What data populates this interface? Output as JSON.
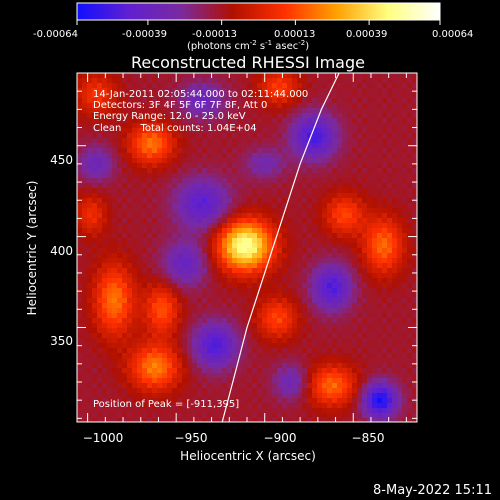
{
  "colorbar": {
    "tick_labels": [
      "-0.00064",
      "-0.00039",
      "-0.00013",
      "0.00013",
      "0.00039",
      "0.00064"
    ],
    "tick_values": [
      -0.00064,
      -0.00039,
      -0.00013,
      0.00013,
      0.00039,
      0.00064
    ],
    "range": [
      -0.00064,
      0.00064
    ],
    "units_prefix": "(photons cm",
    "units_exp1": "-2",
    "units_mid1": " s",
    "units_exp2": "-1",
    "units_mid2": " asec",
    "units_exp3": "-2",
    "units_suffix": ")",
    "colors": [
      "#1010ff",
      "#6020d0",
      "#7a2aa0",
      "#b01000",
      "#ff3000",
      "#ffa000",
      "#ffff80",
      "#ffffff"
    ]
  },
  "footer": {
    "timestamp": "8-May-2022 15:11"
  },
  "chart_data": {
    "type": "heatmap",
    "title": "Reconstructed RHESSI Image",
    "xlabel": "Heliocentric X (arcsec)",
    "ylabel": "Heliocentric Y (arcsec)",
    "xlim": [
      -1006,
      -814
    ],
    "ylim": [
      298,
      490
    ],
    "x_ticks": [
      -1000,
      -950,
      -900,
      -850
    ],
    "y_ticks": [
      350,
      400,
      450
    ],
    "x_tick_labels": [
      "−1000",
      "−950",
      "−900",
      "−850"
    ],
    "y_tick_labels": [
      "350",
      "400",
      "450"
    ],
    "annotations": [
      "14-Jan-2011 02:05:44.000 to 02:11:44.000",
      "Detectors: 3F 4F 5F 6F 7F 8F, Att 0",
      "Energy Range: 12.0 - 25.0 keV",
      "Clean      Total counts: 1.04E+04"
    ],
    "peak_label": "Position of Peak = [-911,395]",
    "peak_position": [
      -911,
      395
    ],
    "limb_curve": [
      [
        -924,
        298
      ],
      [
        -918,
        320
      ],
      [
        -910,
        350
      ],
      [
        -900,
        380
      ],
      [
        -890,
        410
      ],
      [
        -880,
        440
      ],
      [
        -868,
        470
      ],
      [
        -858,
        490
      ]
    ],
    "sources": [
      {
        "x": -911,
        "y": 395,
        "amp": 0.00064,
        "sx": 11,
        "sy": 10
      },
      {
        "x": -964,
        "y": 451,
        "amp": 0.00034,
        "sx": 9,
        "sy": 8
      },
      {
        "x": -962,
        "y": 328,
        "amp": 0.00036,
        "sx": 10,
        "sy": 9
      },
      {
        "x": -985,
        "y": 365,
        "amp": 0.00034,
        "sx": 8,
        "sy": 14
      },
      {
        "x": -958,
        "y": 360,
        "amp": 0.00028,
        "sx": 7,
        "sy": 10
      },
      {
        "x": -833,
        "y": 395,
        "amp": 0.00032,
        "sx": 8,
        "sy": 11
      },
      {
        "x": -855,
        "y": 412,
        "amp": 0.00026,
        "sx": 8,
        "sy": 8
      },
      {
        "x": -862,
        "y": 318,
        "amp": 0.00032,
        "sx": 10,
        "sy": 8
      },
      {
        "x": -893,
        "y": 355,
        "amp": 0.00026,
        "sx": 8,
        "sy": 8
      },
      {
        "x": -892,
        "y": 482,
        "amp": 0.00024,
        "sx": 8,
        "sy": 7
      },
      {
        "x": -995,
        "y": 478,
        "amp": 0.00022,
        "sx": 8,
        "sy": 8
      },
      {
        "x": -998,
        "y": 412,
        "amp": 0.0002,
        "sx": 6,
        "sy": 8
      },
      {
        "x": -935,
        "y": 418,
        "amp": -0.00032,
        "sx": 11,
        "sy": 10
      },
      {
        "x": -945,
        "y": 385,
        "amp": -0.00026,
        "sx": 9,
        "sy": 9
      },
      {
        "x": -928,
        "y": 340,
        "amp": -0.00036,
        "sx": 9,
        "sy": 9
      },
      {
        "x": -872,
        "y": 455,
        "amp": -0.00038,
        "sx": 9,
        "sy": 9
      },
      {
        "x": -862,
        "y": 372,
        "amp": -0.00036,
        "sx": 8,
        "sy": 9
      },
      {
        "x": -835,
        "y": 310,
        "amp": -0.00048,
        "sx": 7,
        "sy": 7
      },
      {
        "x": -995,
        "y": 440,
        "amp": -0.00022,
        "sx": 7,
        "sy": 7
      },
      {
        "x": -935,
        "y": 475,
        "amp": -0.00024,
        "sx": 9,
        "sy": 7
      },
      {
        "x": -885,
        "y": 320,
        "amp": -0.00022,
        "sx": 7,
        "sy": 7
      },
      {
        "x": -900,
        "y": 440,
        "amp": -0.00018,
        "sx": 8,
        "sy": 6
      }
    ]
  }
}
